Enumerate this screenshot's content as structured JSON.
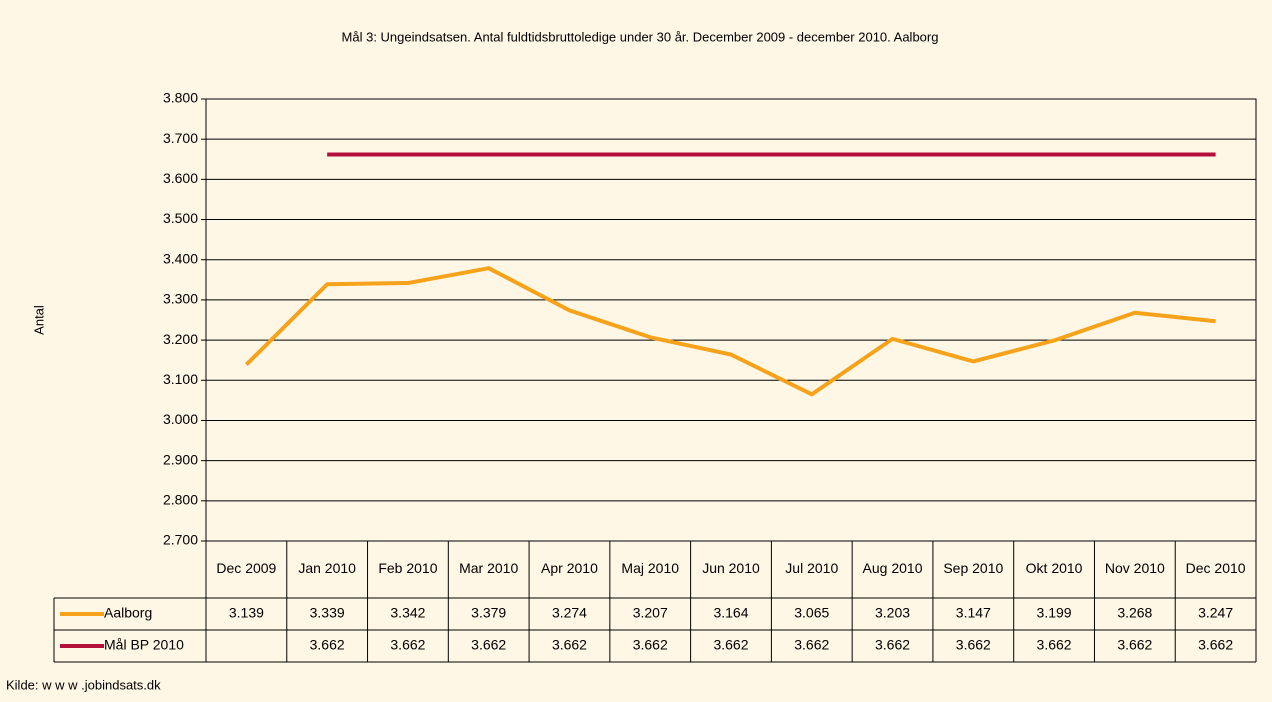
{
  "chart_data": {
    "type": "line",
    "title": "Mål 3: Ungeindsatsen. Antal fuldtidsbruttoledige under 30 år. December 2009 - december 2010. Aalborg",
    "y_label": "Antal",
    "source": "Kilde: w w w .jobindsats.dk",
    "categories": [
      "Dec 2009",
      "Jan 2010",
      "Feb 2010",
      "Mar 2010",
      "Apr 2010",
      "Maj 2010",
      "Jun 2010",
      "Jul 2010",
      "Aug 2010",
      "Sep 2010",
      "Okt 2010",
      "Nov 2010",
      "Dec 2010"
    ],
    "series": [
      {
        "name": "Aalborg",
        "color": "#f7a21b",
        "values": [
          3139,
          3339,
          3342,
          3379,
          3274,
          3207,
          3164,
          3065,
          3203,
          3147,
          3199,
          3268,
          3247
        ],
        "value_labels": [
          "3.139",
          "3.339",
          "3.342",
          "3.379",
          "3.274",
          "3.207",
          "3.164",
          "3.065",
          "3.203",
          "3.147",
          "3.199",
          "3.268",
          "3.247"
        ]
      },
      {
        "name": "Mål BP 2010",
        "color": "#b5103c",
        "values": [
          null,
          3662,
          3662,
          3662,
          3662,
          3662,
          3662,
          3662,
          3662,
          3662,
          3662,
          3662,
          3662
        ],
        "value_labels": [
          null,
          "3.662",
          "3.662",
          "3.662",
          "3.662",
          "3.662",
          "3.662",
          "3.662",
          "3.662",
          "3.662",
          "3.662",
          "3.662",
          "3.662"
        ]
      }
    ],
    "ylim": [
      2700,
      3800
    ],
    "yticks": [
      {
        "value": 2700,
        "label": "2.700"
      },
      {
        "value": 2800,
        "label": "2.800"
      },
      {
        "value": 2900,
        "label": "2.900"
      },
      {
        "value": 3000,
        "label": "3.000"
      },
      {
        "value": 3100,
        "label": "3.100"
      },
      {
        "value": 3200,
        "label": "3.200"
      },
      {
        "value": 3300,
        "label": "3.300"
      },
      {
        "value": 3400,
        "label": "3.400"
      },
      {
        "value": 3500,
        "label": "3.500"
      },
      {
        "value": 3600,
        "label": "3.600"
      },
      {
        "value": 3700,
        "label": "3.700"
      },
      {
        "value": 3800,
        "label": "3.800"
      }
    ],
    "grid": true
  }
}
